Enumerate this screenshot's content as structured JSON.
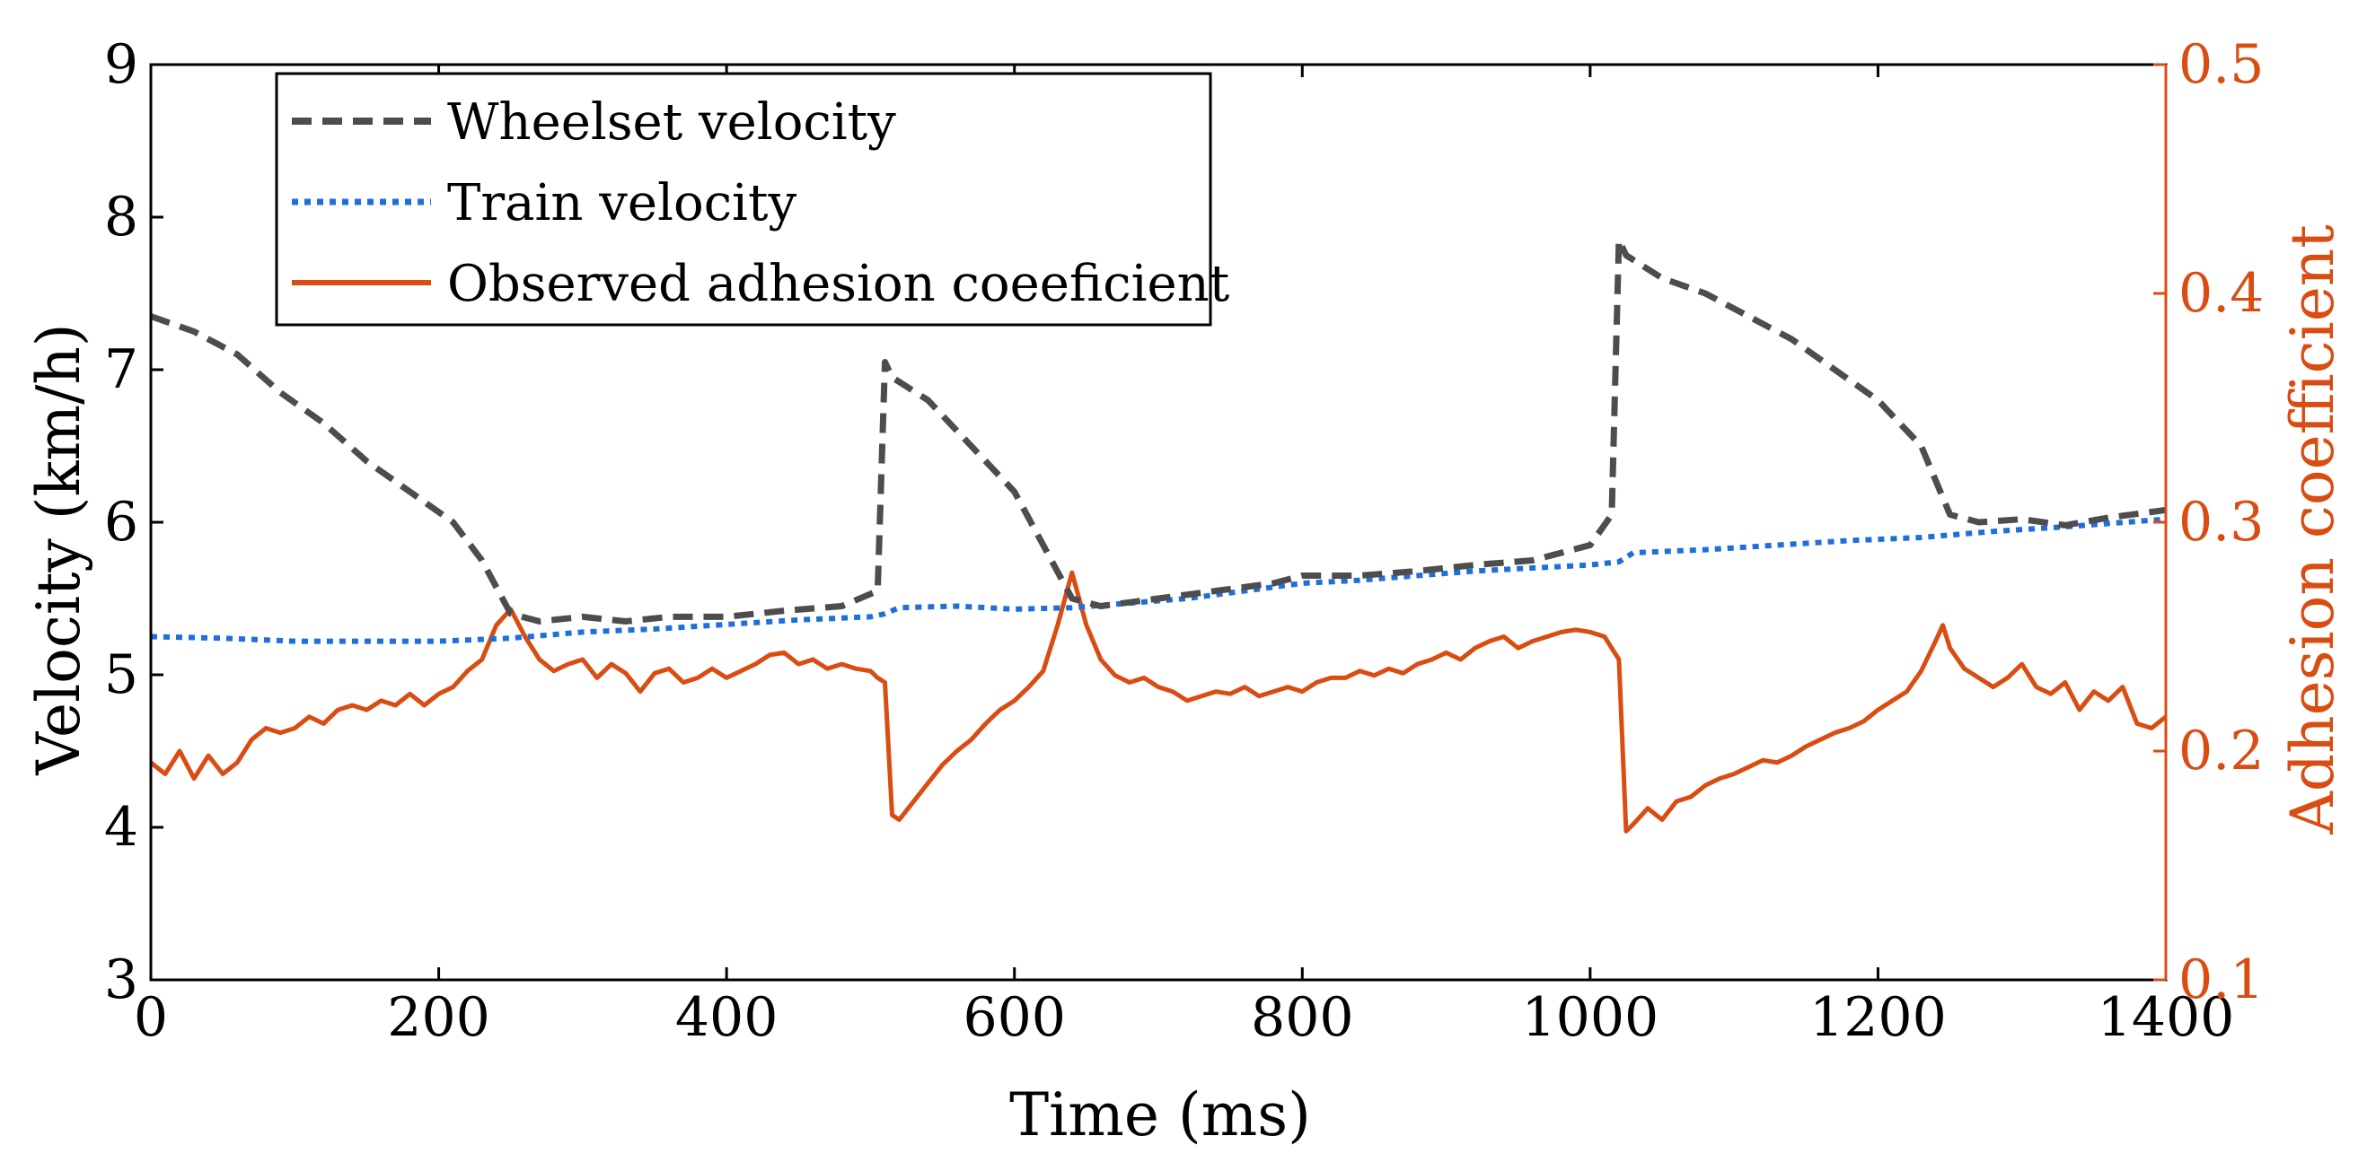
{
  "chart_data": {
    "type": "line",
    "xlabel": "Time (ms)",
    "ylabel_left": "Velocity (km/h)",
    "ylabel_right": "Adhesion coefficient",
    "xlim": [
      0,
      1400
    ],
    "ylim_left": [
      3,
      9
    ],
    "ylim_right": [
      0.1,
      0.5
    ],
    "x_ticks": [
      0,
      200,
      400,
      600,
      800,
      1000,
      1200,
      1400
    ],
    "y_ticks_left": [
      3,
      4,
      5,
      6,
      7,
      8,
      9
    ],
    "y_ticks_right": [
      0.1,
      0.2,
      0.3,
      0.4,
      0.5
    ],
    "y_tick_labels_right": [
      "0.1",
      "0.2",
      "0.3",
      "0.4",
      "0.5"
    ],
    "legend_position": "top-left",
    "colors": {
      "wheelset": "#4d4d4d",
      "train": "#1f6fd8",
      "adhesion": "#d94d12",
      "right_axis": "#d94d12"
    },
    "series": [
      {
        "name": "Wheelset velocity",
        "axis": "left",
        "style": "dashed",
        "x": [
          0,
          30,
          60,
          90,
          120,
          150,
          180,
          210,
          230,
          250,
          270,
          300,
          330,
          360,
          400,
          440,
          480,
          505,
          510,
          515,
          540,
          570,
          600,
          620,
          640,
          660,
          700,
          740,
          780,
          800,
          840,
          880,
          920,
          960,
          1000,
          1015,
          1020,
          1025,
          1050,
          1080,
          1110,
          1140,
          1170,
          1200,
          1230,
          1250,
          1270,
          1300,
          1330,
          1360,
          1400
        ],
        "values": [
          7.35,
          7.25,
          7.1,
          6.85,
          6.65,
          6.4,
          6.2,
          6.0,
          5.75,
          5.4,
          5.35,
          5.38,
          5.35,
          5.38,
          5.38,
          5.42,
          5.45,
          5.55,
          7.05,
          6.95,
          6.8,
          6.5,
          6.2,
          5.85,
          5.5,
          5.45,
          5.5,
          5.55,
          5.6,
          5.65,
          5.65,
          5.68,
          5.72,
          5.75,
          5.85,
          6.05,
          7.85,
          7.75,
          7.6,
          7.5,
          7.35,
          7.2,
          7.0,
          6.8,
          6.5,
          6.05,
          6.0,
          6.02,
          5.98,
          6.03,
          6.08
        ]
      },
      {
        "name": "Train velocity",
        "axis": "left",
        "style": "dotted",
        "x": [
          0,
          50,
          100,
          150,
          200,
          250,
          300,
          350,
          400,
          450,
          500,
          510,
          520,
          560,
          600,
          640,
          680,
          720,
          760,
          800,
          840,
          880,
          920,
          960,
          1000,
          1020,
          1030,
          1080,
          1130,
          1180,
          1230,
          1280,
          1330,
          1400
        ],
        "values": [
          5.25,
          5.24,
          5.22,
          5.22,
          5.22,
          5.24,
          5.28,
          5.3,
          5.33,
          5.36,
          5.38,
          5.4,
          5.44,
          5.45,
          5.43,
          5.44,
          5.47,
          5.5,
          5.55,
          5.6,
          5.62,
          5.65,
          5.68,
          5.7,
          5.72,
          5.74,
          5.8,
          5.82,
          5.85,
          5.88,
          5.9,
          5.94,
          5.97,
          6.02
        ]
      },
      {
        "name": "Observed adhesion coeeficient",
        "axis": "right",
        "style": "solid",
        "x": [
          0,
          10,
          20,
          30,
          40,
          50,
          60,
          70,
          80,
          90,
          100,
          110,
          120,
          130,
          140,
          150,
          160,
          170,
          180,
          190,
          200,
          210,
          220,
          230,
          240,
          250,
          260,
          270,
          280,
          290,
          300,
          310,
          320,
          330,
          340,
          350,
          360,
          370,
          380,
          390,
          400,
          410,
          420,
          430,
          440,
          450,
          460,
          470,
          480,
          490,
          500,
          505,
          510,
          515,
          520,
          530,
          540,
          550,
          560,
          570,
          580,
          590,
          600,
          610,
          620,
          630,
          640,
          650,
          660,
          670,
          680,
          690,
          700,
          710,
          720,
          730,
          740,
          750,
          760,
          770,
          780,
          790,
          800,
          810,
          820,
          830,
          840,
          850,
          860,
          870,
          880,
          890,
          900,
          910,
          920,
          930,
          940,
          950,
          960,
          970,
          980,
          990,
          1000,
          1010,
          1015,
          1020,
          1025,
          1030,
          1040,
          1050,
          1060,
          1070,
          1080,
          1090,
          1100,
          1110,
          1120,
          1130,
          1140,
          1150,
          1160,
          1170,
          1180,
          1190,
          1200,
          1210,
          1220,
          1230,
          1240,
          1245,
          1250,
          1260,
          1270,
          1280,
          1290,
          1300,
          1310,
          1320,
          1330,
          1340,
          1350,
          1360,
          1370,
          1380,
          1390,
          1400
        ],
        "values": [
          0.195,
          0.19,
          0.2,
          0.188,
          0.198,
          0.19,
          0.195,
          0.205,
          0.21,
          0.208,
          0.21,
          0.215,
          0.212,
          0.218,
          0.22,
          0.218,
          0.222,
          0.22,
          0.225,
          0.22,
          0.225,
          0.228,
          0.235,
          0.24,
          0.255,
          0.262,
          0.25,
          0.24,
          0.235,
          0.238,
          0.24,
          0.232,
          0.238,
          0.234,
          0.226,
          0.234,
          0.236,
          0.23,
          0.232,
          0.236,
          0.232,
          0.235,
          0.238,
          0.242,
          0.243,
          0.238,
          0.24,
          0.236,
          0.238,
          0.236,
          0.235,
          0.232,
          0.23,
          0.172,
          0.17,
          0.178,
          0.186,
          0.194,
          0.2,
          0.205,
          0.212,
          0.218,
          0.222,
          0.228,
          0.235,
          0.255,
          0.278,
          0.255,
          0.24,
          0.233,
          0.23,
          0.232,
          0.228,
          0.226,
          0.222,
          0.224,
          0.226,
          0.225,
          0.228,
          0.224,
          0.226,
          0.228,
          0.226,
          0.23,
          0.232,
          0.232,
          0.235,
          0.233,
          0.236,
          0.234,
          0.238,
          0.24,
          0.243,
          0.24,
          0.245,
          0.248,
          0.25,
          0.245,
          0.248,
          0.25,
          0.252,
          0.253,
          0.252,
          0.25,
          0.245,
          0.24,
          0.165,
          0.168,
          0.175,
          0.17,
          0.178,
          0.18,
          0.185,
          0.188,
          0.19,
          0.193,
          0.196,
          0.195,
          0.198,
          0.202,
          0.205,
          0.208,
          0.21,
          0.213,
          0.218,
          0.222,
          0.226,
          0.235,
          0.248,
          0.255,
          0.245,
          0.236,
          0.232,
          0.228,
          0.232,
          0.238,
          0.228,
          0.225,
          0.23,
          0.218,
          0.226,
          0.222,
          0.228,
          0.212,
          0.21,
          0.215
        ]
      }
    ]
  }
}
